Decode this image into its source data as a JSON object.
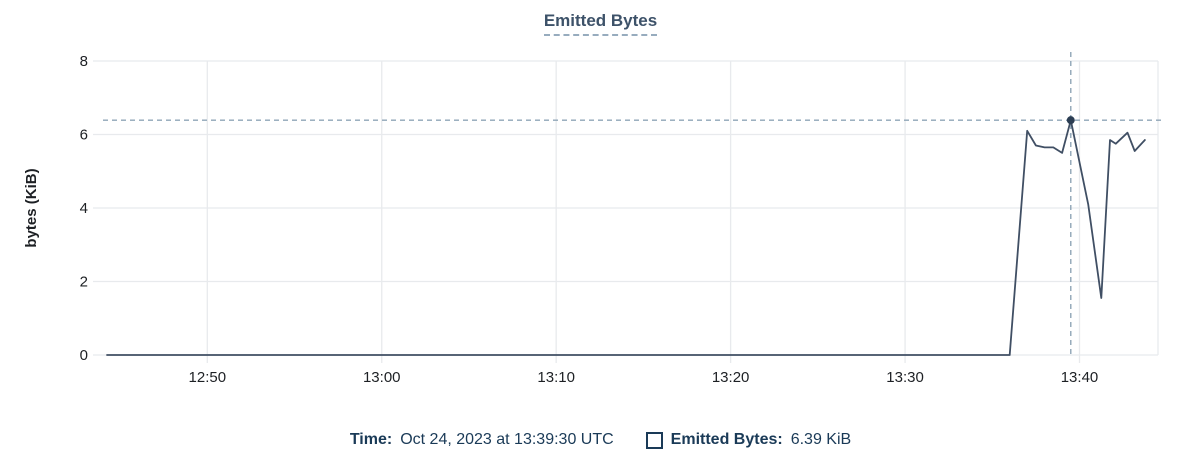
{
  "title": "Emitted Bytes",
  "colors": {
    "title": "#3d5269",
    "title_underline": "#97acbe",
    "line": "#404f64",
    "marker_dot": "#2c3e53",
    "crosshair": "#8fa5b7",
    "grid": "#e8eaed",
    "axis_text": "#1d2024",
    "footer_text": "#1a3a57"
  },
  "footer": {
    "time_label": "Time:",
    "time_value": "Oct 24, 2023 at 13:39:30 UTC",
    "legend_label": "Emitted Bytes:",
    "legend_value": "6.39 KiB"
  },
  "chart_data": {
    "type": "line",
    "title": "Emitted Bytes",
    "xlabel": "",
    "ylabel": "bytes (KiB)",
    "ylim": [
      0,
      8
    ],
    "y_ticks": [
      0,
      2,
      4,
      6,
      8
    ],
    "x_ticks": [
      "12:50",
      "13:00",
      "13:10",
      "13:20",
      "13:30",
      "13:40"
    ],
    "x_range": [
      "12:44:15",
      "13:44:30"
    ],
    "grid": true,
    "legend_position": "bottom",
    "series": [
      {
        "name": "Emitted Bytes",
        "points": [
          [
            "12:44:15",
            0
          ],
          [
            "13:36:00",
            0
          ],
          [
            "13:37:00",
            6.1
          ],
          [
            "13:37:30",
            5.7
          ],
          [
            "13:38:00",
            5.65
          ],
          [
            "13:38:30",
            5.65
          ],
          [
            "13:39:00",
            5.5
          ],
          [
            "13:39:30",
            6.39
          ],
          [
            "13:40:30",
            4.1
          ],
          [
            "13:41:15",
            1.55
          ],
          [
            "13:41:45",
            5.85
          ],
          [
            "13:42:05",
            5.75
          ],
          [
            "13:42:45",
            6.05
          ],
          [
            "13:43:10",
            5.55
          ],
          [
            "13:43:45",
            5.85
          ]
        ]
      }
    ],
    "marker": {
      "time": "13:39:30",
      "value": 6.39
    }
  }
}
